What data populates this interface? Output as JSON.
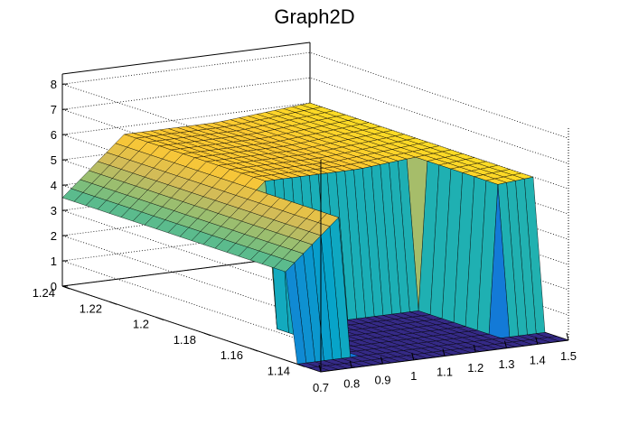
{
  "chart_data": {
    "type": "surface3d",
    "title": "Graph2D",
    "xlabel": "",
    "ylabel": "",
    "zlabel": "",
    "xlim": [
      0.7,
      1.5
    ],
    "ylim": [
      1.13,
      1.24
    ],
    "zlim": [
      0,
      8.4
    ],
    "x_ticks": [
      "0.7",
      "0.8",
      "0.9",
      "1",
      "1.1",
      "1.2",
      "1.3",
      "1.4",
      "1.5"
    ],
    "y_ticks": [
      "1.14",
      "1.16",
      "1.18",
      "1.2",
      "1.22",
      "1.24"
    ],
    "z_ticks": [
      "0",
      "1",
      "2",
      "3",
      "4",
      "5",
      "6",
      "7",
      "8"
    ],
    "grid": true,
    "colormap": [
      "#352a87",
      "#0f5cdd",
      "#1481d6",
      "#06a4ca",
      "#2eb7a4",
      "#87bf77",
      "#d1bb59",
      "#fec832",
      "#f9fb0e"
    ],
    "surface_description": "plateau rising from about 3.5 at x=0.7 to about 5.7 near x=0.9, flat central band, rising to about 6 at x=1.5; surface drops to 0 beyond y≈1.2 for x≈0.9–1.2 and low y region"
  }
}
